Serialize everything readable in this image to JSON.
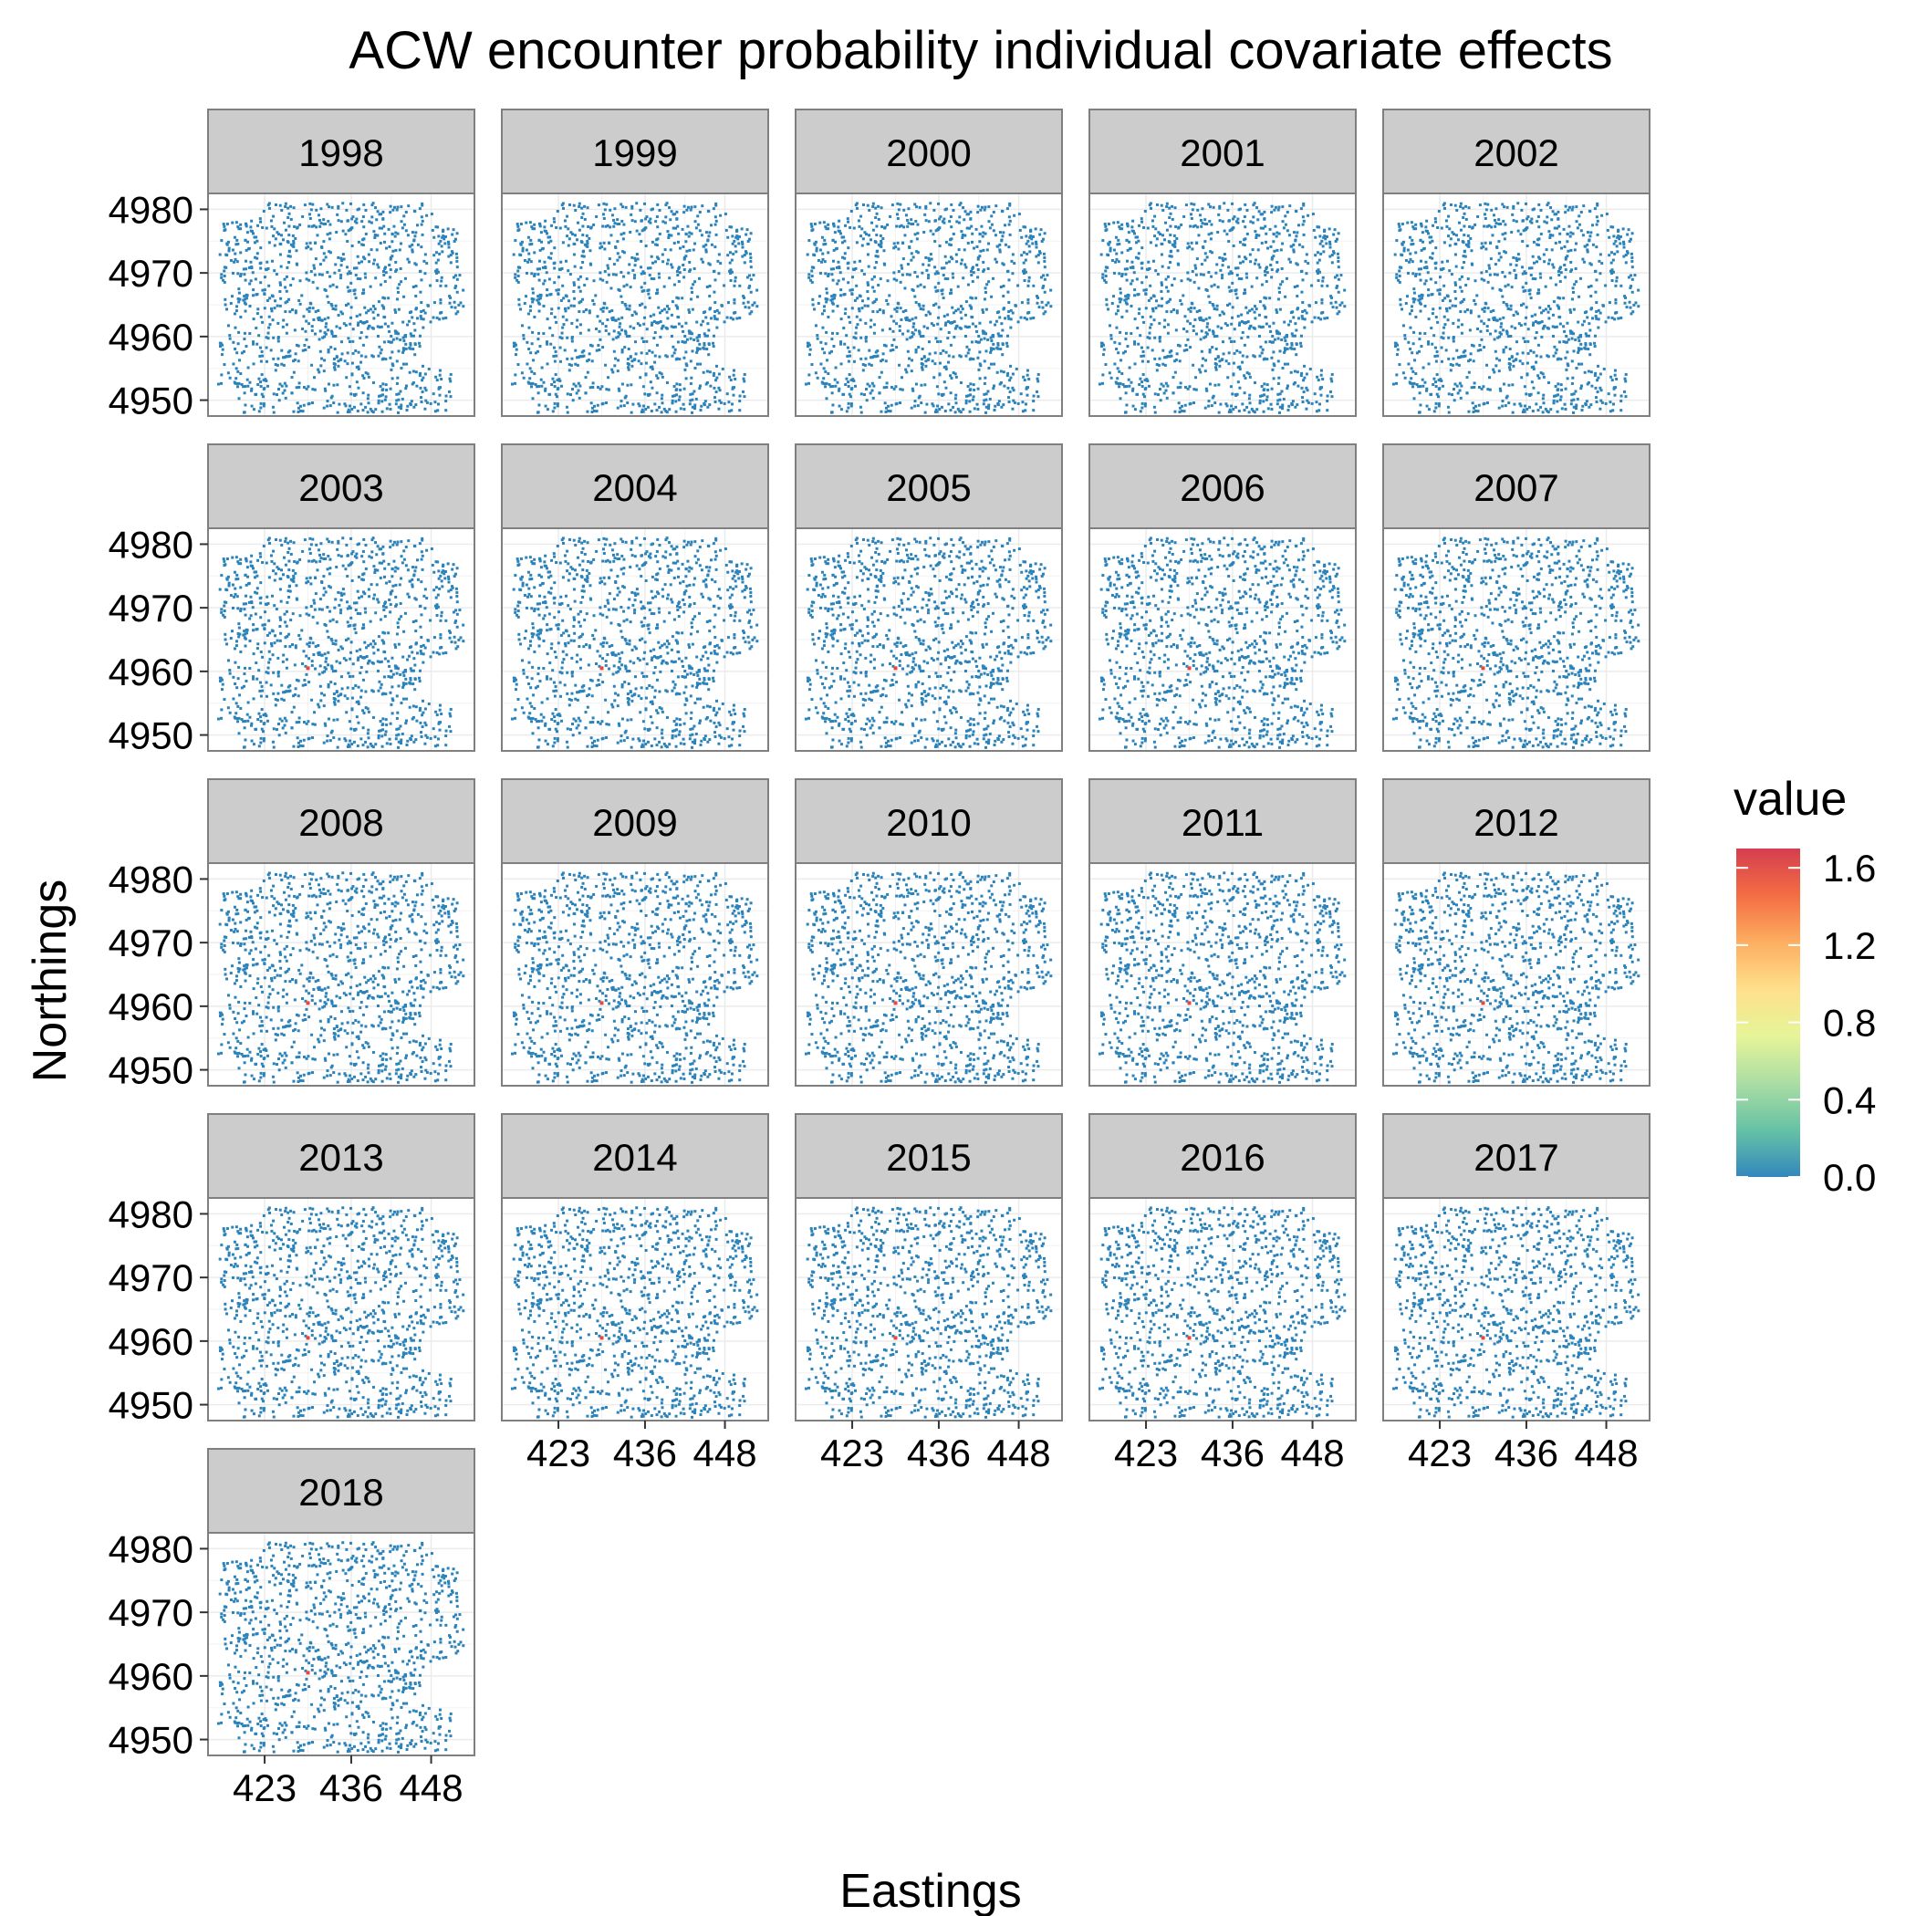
{
  "chart_data": {
    "type": "scatter",
    "title": "ACW encounter probability individual covariate effects",
    "xlabel": "Eastings",
    "ylabel": "Northings",
    "facet_labels": [
      "1998",
      "1999",
      "2000",
      "2001",
      "2002",
      "2003",
      "2004",
      "2005",
      "2006",
      "2007",
      "2008",
      "2009",
      "2010",
      "2011",
      "2012",
      "2013",
      "2014",
      "2015",
      "2016",
      "2017",
      "2018"
    ],
    "x_ticks": [
      423,
      436,
      448
    ],
    "y_ticks": [
      4950,
      4960,
      4970,
      4980
    ],
    "xlim": [
      414.5,
      454.5
    ],
    "ylim": [
      4947.5,
      4982.5
    ],
    "legend": {
      "title": "value",
      "ticks": [
        "1.6",
        "1.2",
        "0.8",
        "0.4",
        "0.0"
      ],
      "tick_values": [
        1.6,
        1.2,
        0.8,
        0.4,
        0.0
      ],
      "range": [
        0.0,
        1.7
      ],
      "palette": [
        "#3288bd",
        "#66c2a5",
        "#abdda4",
        "#e6f598",
        "#fee08b",
        "#fdae61",
        "#f46d43",
        "#d53e4f"
      ],
      "placement": "right"
    },
    "grid": true,
    "point_color_base": "#2b83ba",
    "hotspot": {
      "x": 429.5,
      "y": 4960.5,
      "value": 1.65,
      "visible_from_year": "2003"
    }
  }
}
